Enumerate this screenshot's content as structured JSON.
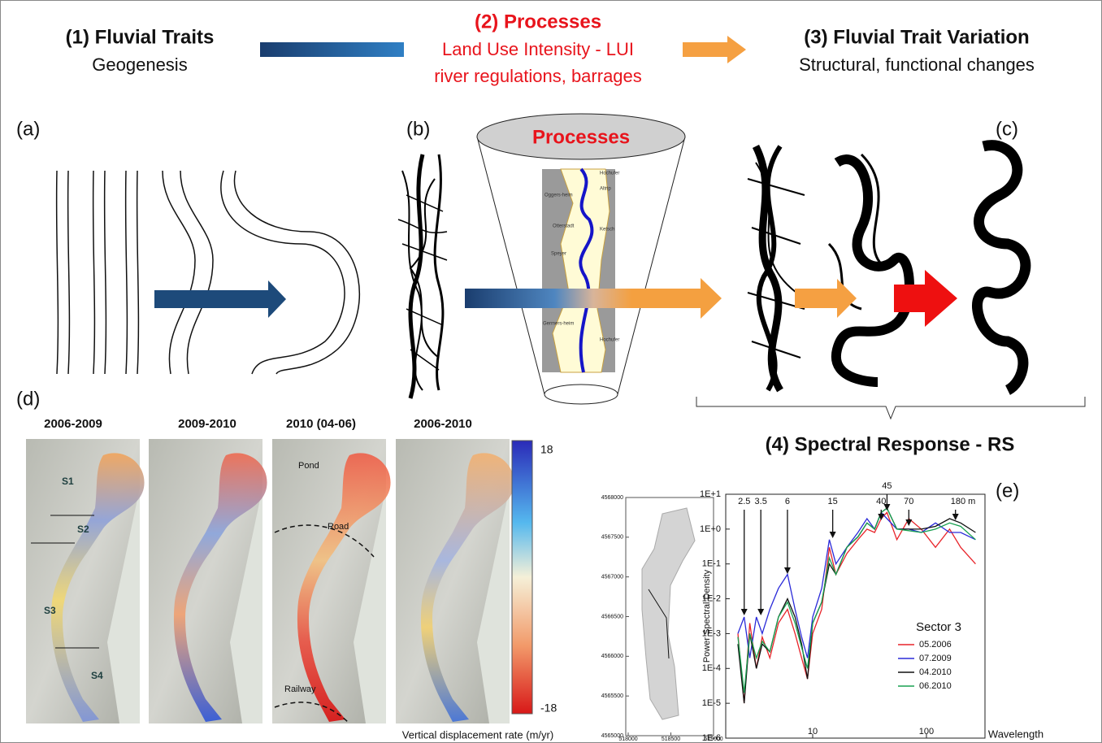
{
  "header": {
    "left_title": "(1) Fluvial Traits",
    "left_subtitle": "Geogenesis",
    "center_title": "(2) Processes",
    "center_line1": "Land Use Intensity - LUI",
    "center_line2": "river regulations, barrages",
    "right_title": "(3) Fluvial Trait Variation",
    "right_subtitle": "Structural, functional changes"
  },
  "panels": {
    "a": "(a)",
    "b": "(b)",
    "c": "(c)",
    "d": "(d)",
    "e": "(e)"
  },
  "cone": {
    "title": "Processes",
    "places": [
      "Hochufer",
      "Oggers-heim",
      "Altrip",
      "Otterstadt",
      "Ketsch",
      "Speyer",
      "Germers-heim",
      "Hochufer"
    ]
  },
  "maps": {
    "titles": [
      "2006-2009",
      "2009-2010",
      "2010 (04-06)",
      "2006-2010"
    ],
    "sectors": [
      "S1",
      "S2",
      "S3",
      "S4"
    ],
    "features": [
      "Pond",
      "Road",
      "Railway"
    ],
    "colorbar_ticks": [
      18,
      -18
    ],
    "caption": "Vertical displacement rate (m/yr)"
  },
  "spectral_title": "(4) Spectral Response - RS",
  "inset_map": {
    "yticks": [
      4568000,
      4567500,
      4567000,
      4566500,
      4566000,
      4565500,
      4565000
    ],
    "xticks": [
      518000,
      518500,
      519000
    ]
  },
  "spectral_plot": {
    "type": "line",
    "xlabel": "Wavelength",
    "ylabel": "Power Spectral Density",
    "legend_title": "Sector 3",
    "log_x": true,
    "log_y": true,
    "xlim": [
      1.72,
      327
    ],
    "ylim": [
      1e-06,
      10
    ],
    "xticks": [
      10,
      100
    ],
    "yticks": [
      {
        "value": 10,
        "label": "1E+1"
      },
      {
        "value": 1,
        "label": "1E+0"
      },
      {
        "value": 0.1,
        "label": "1E-1"
      },
      {
        "value": 0.01,
        "label": "1E-2"
      },
      {
        "value": 0.001,
        "label": "1E-3"
      },
      {
        "value": 0.0001,
        "label": "1E-4"
      },
      {
        "value": 1e-05,
        "label": "1E-5"
      },
      {
        "value": 1e-06,
        "label": "1E-6"
      }
    ],
    "annotations": [
      2.5,
      3.5,
      6,
      15,
      40,
      45,
      70,
      {
        "value": 180,
        "label": "180 m"
      }
    ],
    "x": [
      2.2,
      2.5,
      2.8,
      3.2,
      3.6,
      4.2,
      5,
      6,
      7,
      8,
      9,
      10,
      12,
      14,
      16,
      20,
      25,
      30,
      35,
      40,
      45,
      55,
      70,
      90,
      120,
      160,
      200,
      270
    ],
    "series": [
      {
        "name": "05.2006",
        "color": "#e8242a",
        "values": [
          0.001,
          1e-05,
          0.002,
          0.0001,
          0.0008,
          0.0002,
          0.002,
          0.005,
          0.001,
          0.0002,
          5e-05,
          0.001,
          0.005,
          0.3,
          0.05,
          0.2,
          0.5,
          1,
          0.8,
          2,
          3,
          0.5,
          2,
          1,
          0.3,
          1,
          0.3,
          0.1
        ]
      },
      {
        "name": "07.2009",
        "color": "#2b2bd9",
        "values": [
          0.001,
          0.003,
          0.0002,
          0.003,
          0.001,
          0.005,
          0.02,
          0.05,
          0.005,
          0.0008,
          0.0002,
          0.003,
          0.02,
          0.5,
          0.1,
          0.3,
          0.8,
          2,
          1,
          3,
          2,
          1,
          1,
          0.8,
          1.5,
          0.8,
          0.8,
          0.5
        ]
      },
      {
        "name": "04.2010",
        "color": "#111111",
        "values": [
          0.0005,
          1e-05,
          0.001,
          0.0001,
          0.0005,
          0.0003,
          0.003,
          0.01,
          0.003,
          0.0005,
          5e-05,
          0.002,
          0.008,
          0.1,
          0.05,
          0.3,
          0.6,
          1.5,
          1,
          3,
          4,
          1,
          1,
          1,
          1.2,
          2,
          1.5,
          0.8
        ]
      },
      {
        "name": "06.2010",
        "color": "#18a050",
        "values": [
          0.0008,
          2e-05,
          0.001,
          0.0002,
          0.0006,
          0.0003,
          0.003,
          0.008,
          0.002,
          0.0004,
          0.0001,
          0.002,
          0.008,
          0.15,
          0.05,
          0.3,
          0.6,
          1.5,
          1,
          3,
          4,
          1,
          0.9,
          0.8,
          1,
          1.5,
          1.2,
          0.5
        ]
      }
    ]
  }
}
